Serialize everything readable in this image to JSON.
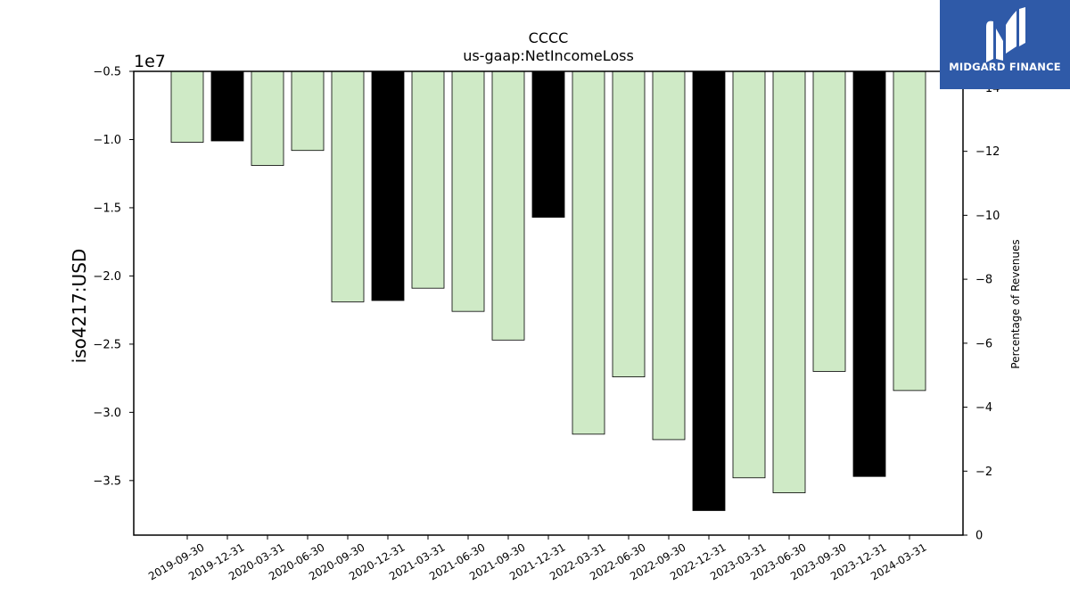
{
  "chart_data": {
    "type": "bar",
    "title": "CCCC",
    "subtitle": "us-gaap:NetIncomeLoss",
    "ylabel": "iso4217:USD",
    "y_offset_label": "1e7",
    "y2label": "Percentage of Revenues",
    "categories": [
      "2019-09-30",
      "2019-12-31",
      "2020-03-31",
      "2020-06-30",
      "2020-09-30",
      "2020-12-31",
      "2021-03-31",
      "2021-06-30",
      "2021-09-30",
      "2021-12-31",
      "2022-03-31",
      "2022-06-30",
      "2022-09-30",
      "2022-12-31",
      "2023-03-31",
      "2023-06-30",
      "2023-09-30",
      "2023-12-31",
      "2024-03-31"
    ],
    "values": [
      -10200000,
      -10100000,
      -11900000,
      -10800000,
      -21900000,
      -21800000,
      -20900000,
      -22600000,
      -24700000,
      -15700000,
      -31600000,
      -27400000,
      -32000000,
      -37200000,
      -34800000,
      -35900000,
      -27000000,
      -34700000,
      -28400000
    ],
    "highlight": [
      false,
      true,
      false,
      false,
      false,
      true,
      false,
      false,
      false,
      true,
      false,
      false,
      false,
      true,
      false,
      false,
      false,
      true,
      false
    ],
    "ylim": [
      -0.5,
      -3.9
    ],
    "yticks": [
      -0.5,
      -1.0,
      -1.5,
      -2.0,
      -2.5,
      -3.0,
      -3.5
    ],
    "ytick_labels": [
      "−0.5",
      "−1.0",
      "−1.5",
      "−2.0",
      "−2.5",
      "−3.0",
      "−3.5"
    ],
    "y2lim": [
      0,
      -14.5
    ],
    "y2ticks": [
      0,
      -2,
      -4,
      -6,
      -8,
      -10,
      -12
    ],
    "y2tick_labels": [
      "0",
      "−2",
      "−4",
      "−6",
      "−8",
      "−10",
      "−12"
    ],
    "y2_clipped_label": "−14",
    "colors": {
      "quarter": "#cfeac6",
      "annual": "#000000",
      "edge": "#000000"
    },
    "grid": false,
    "legend": "none"
  },
  "logo": {
    "text": "MIDGARD FINANCE",
    "icon": "midgard-logo-icon"
  }
}
